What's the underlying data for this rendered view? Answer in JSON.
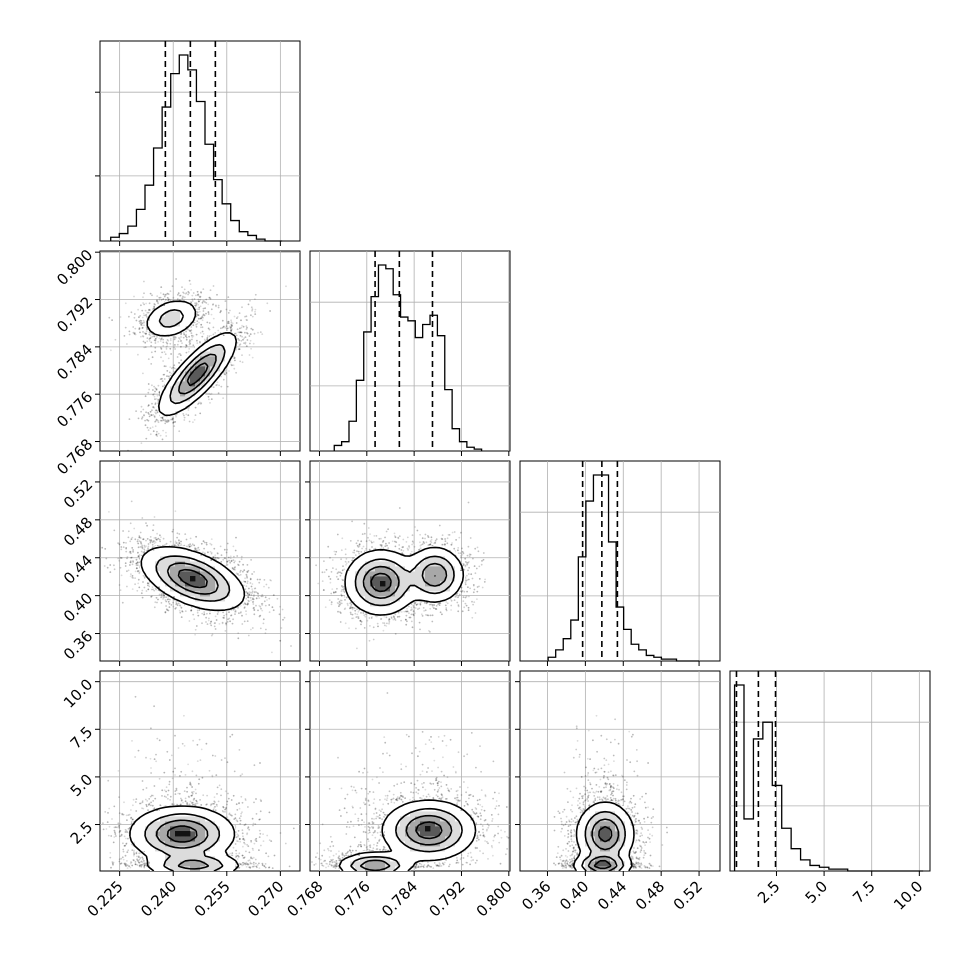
{
  "chart_data": {
    "type": "corner",
    "parameters": [
      {
        "range": [
          0.2195,
          0.2755
        ],
        "ticks": [
          "0.225",
          "0.240",
          "0.255",
          "0.270"
        ],
        "quantiles": [
          0.2378,
          0.2448,
          0.2518
        ],
        "hist": {
          "range": [
            0.2225,
            0.2705
          ],
          "counts": [
            2,
            4,
            8,
            17,
            30,
            50,
            72,
            90,
            100,
            92,
            75,
            52,
            33,
            20,
            11,
            5,
            3,
            1,
            0,
            0
          ]
        }
      },
      {
        "range": [
          0.7664,
          0.8002
        ],
        "ticks": [
          "0.768",
          "0.776",
          "0.784",
          "0.792",
          "0.800"
        ],
        "quantiles": [
          0.7774,
          0.7815,
          0.7871
        ],
        "hist": {
          "range": [
            0.7705,
            0.7954
          ],
          "counts": [
            3,
            5,
            16,
            38,
            64,
            83,
            100,
            98,
            84,
            72,
            70,
            61,
            68,
            73,
            62,
            33,
            12,
            5,
            2,
            1
          ]
        }
      },
      {
        "range": [
          0.331,
          0.5421
        ],
        "ticks": [
          "0.36",
          "0.40",
          "0.44",
          "0.48",
          "0.52"
        ],
        "quantiles": [
          0.3971,
          0.4174,
          0.4338
        ],
        "hist": {
          "range": [
            0.3607,
            0.5201
          ],
          "counts": [
            2,
            6,
            12,
            22,
            56,
            86,
            100,
            100,
            64,
            29,
            17,
            9,
            6,
            3,
            2,
            1,
            1,
            0,
            0,
            0
          ]
        }
      },
      {
        "range": [
          0.06,
          10.56
        ],
        "ticks": [
          "2.5",
          "5.0",
          "7.5",
          "10.0"
        ],
        "ytick_labels": [
          "2.5",
          "5.0",
          "7.5",
          "10.0"
        ],
        "quantiles": [
          0.4,
          1.55,
          2.45
        ],
        "hist": {
          "range": [
            0.3,
            10.2
          ],
          "counts": [
            100,
            28,
            71,
            80,
            46,
            23,
            12,
            6,
            3,
            2,
            1,
            1,
            0,
            0,
            0,
            0,
            0,
            0,
            0,
            0
          ]
        }
      }
    ],
    "pairs": [
      {
        "x": 0,
        "y": 1,
        "blobs": [
          {
            "cx": 0.2395,
            "cy": 0.7888,
            "sx": 0.0037,
            "sy": 0.0016,
            "corr": 0.3,
            "weight": 0.4
          },
          {
            "cx": 0.2468,
            "cy": 0.7794,
            "sx": 0.0048,
            "sy": 0.0031,
            "corr": 0.8,
            "weight": 0.6
          }
        ]
      },
      {
        "x": 0,
        "y": 2,
        "blobs": [
          {
            "cx": 0.2455,
            "cy": 0.418,
            "sx": 0.0064,
            "sy": 0.0148,
            "corr": -0.5,
            "weight": 1.0
          }
        ]
      },
      {
        "x": 1,
        "y": 2,
        "blobs": [
          {
            "cx": 0.7784,
            "cy": 0.414,
            "sx": 0.0027,
            "sy": 0.0152,
            "corr": 0.0,
            "weight": 0.55
          },
          {
            "cx": 0.7875,
            "cy": 0.422,
            "sx": 0.0022,
            "sy": 0.0132,
            "corr": 0.0,
            "weight": 0.45
          }
        ]
      },
      {
        "x": 0,
        "y": 3,
        "blobs": [
          {
            "cx": 0.2458,
            "cy": 0.35,
            "sx": 0.006,
            "sy": 0.3,
            "corr": 0.0,
            "weight": 0.4
          },
          {
            "cx": 0.2425,
            "cy": 2.0,
            "sx": 0.0065,
            "sy": 0.65,
            "corr": 0.0,
            "weight": 0.6
          }
        ]
      },
      {
        "x": 1,
        "y": 3,
        "blobs": [
          {
            "cx": 0.7774,
            "cy": 0.35,
            "sx": 0.0028,
            "sy": 0.3,
            "corr": 0.0,
            "weight": 0.45
          },
          {
            "cx": 0.7865,
            "cy": 2.2,
            "sx": 0.0035,
            "sy": 0.7,
            "corr": 0.0,
            "weight": 0.55
          }
        ]
      },
      {
        "x": 2,
        "y": 3,
        "blobs": [
          {
            "cx": 0.418,
            "cy": 0.35,
            "sx": 0.0135,
            "sy": 0.3,
            "corr": 0.0,
            "weight": 0.5
          },
          {
            "cx": 0.421,
            "cy": 2.0,
            "sx": 0.0135,
            "sy": 0.75,
            "corr": 0.0,
            "weight": 0.5
          }
        ]
      }
    ],
    "grid": true
  }
}
